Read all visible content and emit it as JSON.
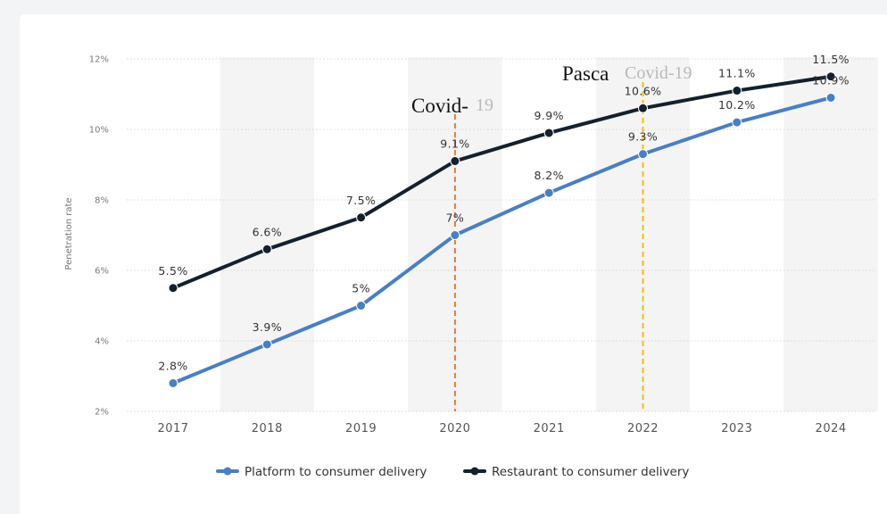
{
  "chart_data": {
    "type": "line",
    "title": "",
    "xlabel": "",
    "ylabel": "Penetration rate",
    "categories": [
      "2017",
      "2018",
      "2019",
      "2020",
      "2021",
      "2022",
      "2023",
      "2024"
    ],
    "yticks": [
      "2%",
      "4%",
      "6%",
      "8%",
      "10%",
      "12%"
    ],
    "ylim": [
      2,
      12
    ],
    "grid": true,
    "legend_position": "bottom-center",
    "series": [
      {
        "name": "Platform to consumer delivery",
        "values": [
          2.8,
          3.9,
          5,
          7,
          8.2,
          9.3,
          10.2,
          10.9
        ],
        "labels": [
          "2.8%",
          "3.9%",
          "5%",
          "7%",
          "8.2%",
          "9.3%",
          "10.2%",
          "10.9%"
        ],
        "color": "#4a7fc1"
      },
      {
        "name": "Restaurant to consumer delivery",
        "values": [
          5.5,
          6.6,
          7.5,
          9.1,
          9.9,
          10.6,
          11.1,
          11.5
        ],
        "labels": [
          "5.5%",
          "6.6%",
          "7.5%",
          "9.1%",
          "9.9%",
          "10.6%",
          "11.1%",
          "11.5%"
        ],
        "color": "#14202e"
      }
    ],
    "annotations": [
      {
        "at": "2020",
        "text": "Covid-",
        "ghost_text": "19",
        "color": "#f07a2a"
      },
      {
        "at": "2022",
        "text": "Pasca",
        "ghost_text": "Covid-19",
        "color": "#f5c000"
      }
    ]
  }
}
